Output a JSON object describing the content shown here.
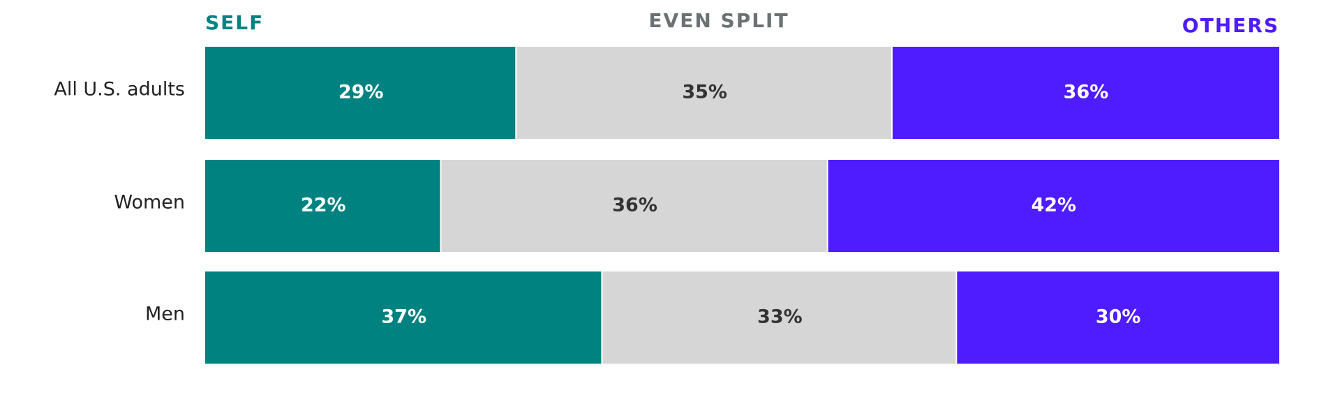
{
  "chart_data": {
    "type": "stacked-bar-horizontal",
    "categories": [
      "All U.S. adults",
      "Women",
      "Men"
    ],
    "series": [
      {
        "name": "SELF",
        "color": "#008380",
        "values": [
          29,
          22,
          37
        ],
        "value_labels": [
          "29%",
          "22%",
          "37%"
        ]
      },
      {
        "name": "EVEN SPLIT",
        "color": "#d6d6d6",
        "values": [
          35,
          36,
          33
        ],
        "value_labels": [
          "35%",
          "36%",
          "33%"
        ]
      },
      {
        "name": "OTHERS",
        "color": "#4f1bff",
        "values": [
          36,
          42,
          30
        ],
        "value_labels": [
          "36%",
          "42%",
          "30%"
        ]
      }
    ],
    "legend_label_colors": [
      "#008380",
      "#6b7274",
      "#4f1bff"
    ]
  }
}
